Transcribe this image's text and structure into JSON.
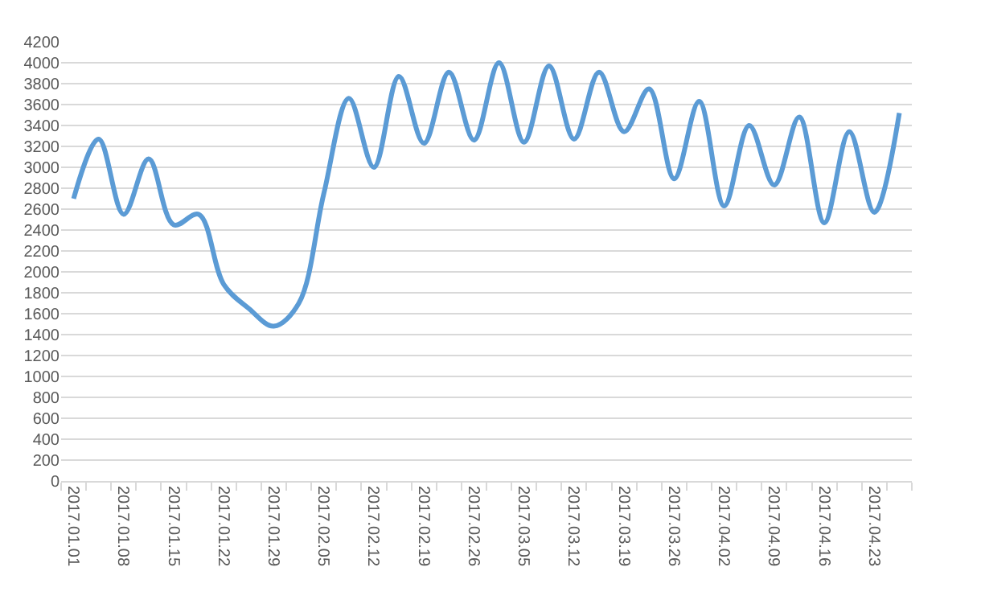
{
  "chart_data": {
    "type": "line",
    "categories": [
      "2017.01.01",
      null,
      "2017.01.08",
      null,
      "2017.01.15",
      null,
      "2017.01.22",
      null,
      "2017.01.29",
      null,
      "2017.02.05",
      null,
      "2017.02.12",
      null,
      "2017.02.19",
      null,
      "2017.02.26",
      null,
      "2017.03.05",
      null,
      "2017.03.12",
      null,
      "2017.03.19",
      null,
      "2017.03.26",
      null,
      "2017.04.02",
      null,
      "2017.04.09",
      null,
      "2017.04.16",
      null,
      "2017.04.23",
      null
    ],
    "values": [
      2700,
      3270,
      2550,
      3080,
      2450,
      2550,
      1880,
      1650,
      1480,
      1700,
      2750,
      3660,
      3000,
      3870,
      3230,
      3910,
      3260,
      4000,
      3240,
      3970,
      3270,
      3910,
      3340,
      3750,
      2890,
      3630,
      2630,
      3400,
      2830,
      3480,
      2470,
      3340,
      2570,
      3520
    ],
    "color": "#5b9bd5",
    "ylim": [
      0,
      4200
    ],
    "yticks": [
      0,
      200,
      400,
      600,
      800,
      1000,
      1200,
      1400,
      1600,
      1800,
      2000,
      2200,
      2400,
      2600,
      2800,
      3000,
      3200,
      3400,
      3600,
      3800,
      4000,
      4200
    ],
    "grid": "y"
  }
}
